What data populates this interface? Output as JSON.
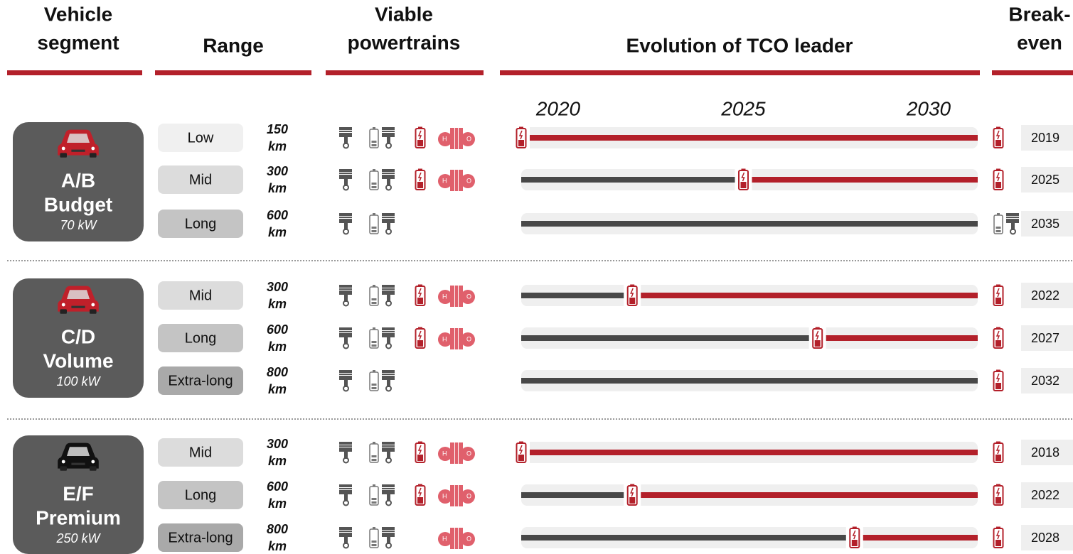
{
  "header": {
    "columns": [
      [
        "Vehicle",
        "segment"
      ],
      [
        "Range"
      ],
      [
        "Viable",
        "powertrains"
      ],
      [
        "Evolution of TCO leader"
      ],
      [
        "Break-",
        "even"
      ]
    ]
  },
  "timeline": {
    "ticks": [
      2020,
      2025,
      2030
    ],
    "leader_color": "#b3202a",
    "incumbent_color": "#484848"
  },
  "segments": [
    {
      "code": "A/B",
      "name": "Budget",
      "power": "70 kW",
      "color": "#c0202a",
      "rows": [
        {
          "range": "Low",
          "color": "#f0f0f0",
          "distance": 150,
          "unit": "km",
          "powertrains": {
            "ice": true,
            "hybrid": true,
            "bev": true,
            "fcev": true
          },
          "breakeven": 2019,
          "breakeven_icon": "bev"
        },
        {
          "range": "Mid",
          "color": "#dcdcdc",
          "distance": 300,
          "unit": "km",
          "powertrains": {
            "ice": true,
            "hybrid": true,
            "bev": true,
            "fcev": true
          },
          "breakeven": 2025,
          "breakeven_icon": "bev"
        },
        {
          "range": "Long",
          "color": "#c4c4c4",
          "distance": 600,
          "unit": "km",
          "powertrains": {
            "ice": true,
            "hybrid": true,
            "bev": false,
            "fcev": false
          },
          "breakeven": 2035,
          "breakeven_icon": "hybrid"
        }
      ]
    },
    {
      "code": "C/D",
      "name": "Volume",
      "power": "100 kW",
      "color": "#c0202a",
      "rows": [
        {
          "range": "Mid",
          "color": "#dcdcdc",
          "distance": 300,
          "unit": "km",
          "powertrains": {
            "ice": true,
            "hybrid": true,
            "bev": true,
            "fcev": true
          },
          "breakeven": 2022,
          "breakeven_icon": "bev"
        },
        {
          "range": "Long",
          "color": "#c4c4c4",
          "distance": 600,
          "unit": "km",
          "powertrains": {
            "ice": true,
            "hybrid": true,
            "bev": true,
            "fcev": true
          },
          "breakeven": 2027,
          "breakeven_icon": "bev"
        },
        {
          "range": "Extra-long",
          "color": "#a9a9a9",
          "distance": 800,
          "unit": "km",
          "powertrains": {
            "ice": true,
            "hybrid": true,
            "bev": false,
            "fcev": false
          },
          "breakeven": 2032,
          "breakeven_icon": "bev"
        }
      ]
    },
    {
      "code": "E/F",
      "name": "Premium",
      "power": "250 kW",
      "color": "#111111",
      "rows": [
        {
          "range": "Mid",
          "color": "#dcdcdc",
          "distance": 300,
          "unit": "km",
          "powertrains": {
            "ice": true,
            "hybrid": true,
            "bev": true,
            "fcev": true
          },
          "breakeven": 2018,
          "breakeven_icon": "bev"
        },
        {
          "range": "Long",
          "color": "#c4c4c4",
          "distance": 600,
          "unit": "km",
          "powertrains": {
            "ice": true,
            "hybrid": true,
            "bev": true,
            "fcev": true
          },
          "breakeven": 2022,
          "breakeven_icon": "bev"
        },
        {
          "range": "Extra-long",
          "color": "#a9a9a9",
          "distance": 800,
          "unit": "km",
          "powertrains": {
            "ice": true,
            "hybrid": true,
            "bev": false,
            "fcev": true
          },
          "breakeven": 2028,
          "breakeven_icon": "bev"
        }
      ]
    }
  ]
}
